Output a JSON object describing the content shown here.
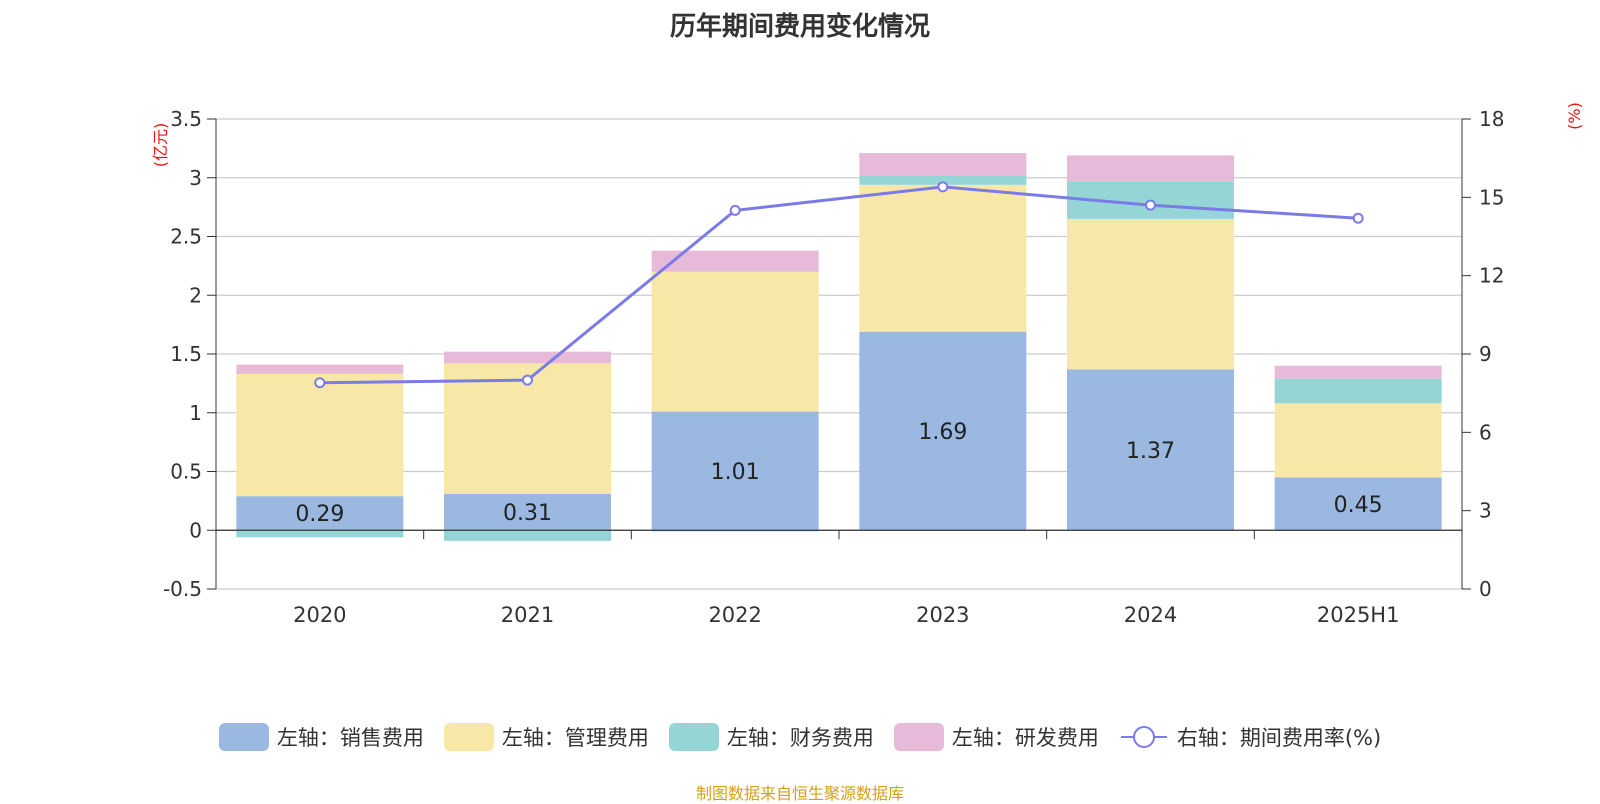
{
  "chart_data": {
    "type": "bar",
    "title": "历年期间费用变化情况",
    "categories": [
      "2020",
      "2021",
      "2022",
      "2023",
      "2024",
      "2025H1"
    ],
    "left_axis": {
      "unit_label": "(亿元)",
      "ylim": [
        -0.5,
        3.5
      ],
      "ticks": [
        "3.5",
        "3",
        "2.5",
        "2",
        "1.5",
        "1",
        "0.5",
        "0",
        "-0.5"
      ]
    },
    "right_axis": {
      "unit_label": "(%)",
      "ylim": [
        0,
        18
      ],
      "ticks": [
        "18",
        "15",
        "12",
        "9",
        "6",
        "3",
        "0"
      ]
    },
    "series": [
      {
        "name": "左轴：销售费用",
        "type": "bar",
        "color": "#9bb8e1",
        "values": [
          0.29,
          0.31,
          1.01,
          1.69,
          1.37,
          0.45
        ],
        "labels": [
          "0.29",
          "0.31",
          "1.01",
          "1.69",
          "1.37",
          "0.45"
        ]
      },
      {
        "name": "左轴：管理费用",
        "type": "bar",
        "color": "#f8e8a8",
        "values": [
          1.04,
          1.11,
          1.19,
          1.25,
          1.28,
          0.63
        ]
      },
      {
        "name": "左轴：财务费用",
        "type": "bar",
        "color": "#96d5d6",
        "values": [
          -0.06,
          -0.09,
          -0.01,
          0.08,
          0.32,
          0.21
        ]
      },
      {
        "name": "左轴：研发费用",
        "type": "bar",
        "color": "#e8bada",
        "values": [
          0.08,
          0.1,
          0.18,
          0.19,
          0.22,
          0.11
        ]
      },
      {
        "name": "右轴：期间费用率(%)",
        "type": "line",
        "color": "#7b7be8",
        "values": [
          7.9,
          8.0,
          14.5,
          15.4,
          14.7,
          14.2
        ]
      }
    ],
    "grid": true,
    "legend_position": "bottom"
  },
  "source": "制图数据来自恒生聚源数据库"
}
